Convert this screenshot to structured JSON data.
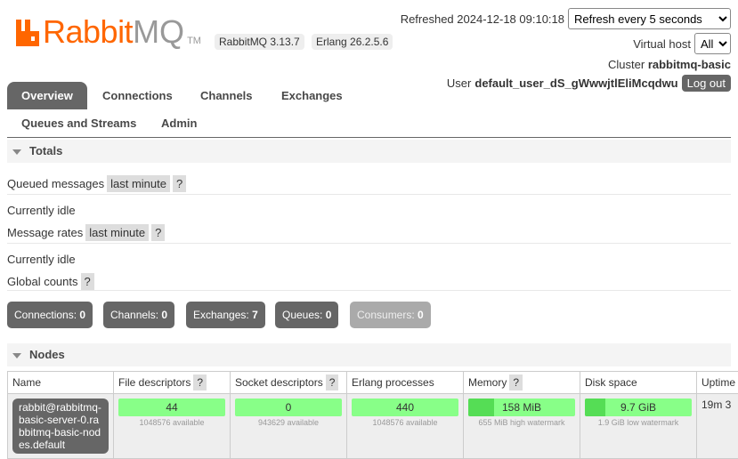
{
  "logo": {
    "rabbit": "Rabbit",
    "mq": "MQ",
    "tm": "TM"
  },
  "versions": {
    "rabbitmq": "RabbitMQ 3.13.7",
    "erlang": "Erlang 26.2.5.6"
  },
  "header": {
    "refreshed": "Refreshed 2024-12-18 09:10:18",
    "refresh_option": "Refresh every 5 seconds",
    "vhost_label": "Virtual host",
    "vhost_value": "All",
    "cluster_label": "Cluster",
    "cluster_name": "rabbitmq-basic",
    "user_label": "User",
    "user_name": "default_user_dS_gWwwjtlEliMcqdwu",
    "logout": "Log out"
  },
  "tabs": [
    "Overview",
    "Connections",
    "Channels",
    "Exchanges",
    "Queues and Streams",
    "Admin"
  ],
  "totals": {
    "title": "Totals",
    "queued_label": "Queued messages",
    "queued_range": "last minute",
    "help": "?",
    "idle1": "Currently idle",
    "rates_label": "Message rates",
    "rates_range": "last minute",
    "idle2": "Currently idle",
    "global_label": "Global counts"
  },
  "counts": [
    {
      "label": "Connections:",
      "value": "0"
    },
    {
      "label": "Channels:",
      "value": "0"
    },
    {
      "label": "Exchanges:",
      "value": "7"
    },
    {
      "label": "Queues:",
      "value": "0"
    },
    {
      "label": "Consumers:",
      "value": "0"
    }
  ],
  "nodes": {
    "title": "Nodes",
    "headers": [
      "Name",
      "File descriptors",
      "Socket descriptors",
      "Erlang processes",
      "Memory",
      "Disk space",
      "Uptime"
    ],
    "row": {
      "name": "rabbit@rabbitmq-basic-server-0.rabbitmq-basic-nodes.default",
      "fd": "44",
      "fd_sub": "1048576 available",
      "sd": "0",
      "sd_sub": "943629 available",
      "ep": "440",
      "ep_sub": "1048576 available",
      "mem": "158 MiB",
      "mem_sub": "655 MiB high watermark",
      "mem_fraction": 0.24,
      "disk": "9.7 GiB",
      "disk_sub": "1.9 GiB low watermark",
      "disk_fraction": 0.19,
      "uptime": "19m 3"
    }
  },
  "colors": {
    "brand": "#ff6600",
    "ok": "#88ff88",
    "ok_dark": "#55dd55"
  }
}
